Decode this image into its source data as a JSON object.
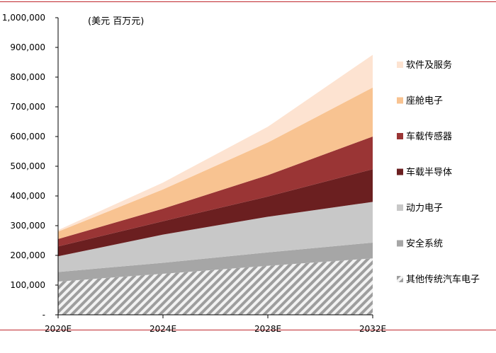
{
  "chart_data": {
    "type": "area",
    "stacked": true,
    "title": "",
    "unit_label": "(美元 百万元)",
    "categories": [
      "2020E",
      "2024E",
      "2028E",
      "2032E"
    ],
    "ylim": [
      0,
      1000000
    ],
    "yticks": [
      {
        "value": 0,
        "label": "-"
      },
      {
        "value": 100000,
        "label": "100,000"
      },
      {
        "value": 200000,
        "label": "200,000"
      },
      {
        "value": 300000,
        "label": "300,000"
      },
      {
        "value": 400000,
        "label": "400,000"
      },
      {
        "value": 500000,
        "label": "500,000"
      },
      {
        "value": 600000,
        "label": "600,000"
      },
      {
        "value": 700000,
        "label": "700,000"
      },
      {
        "value": 800000,
        "label": "800,000"
      },
      {
        "value": 900000,
        "label": "900,000"
      },
      {
        "value": 1000000,
        "label": "1,000,000"
      }
    ],
    "legend_position": "right",
    "series": [
      {
        "name": "其他传统汽车电子",
        "color": "#9e9e9e",
        "hatched": true,
        "values": [
          112000,
          138000,
          165000,
          190000
        ]
      },
      {
        "name": "安全系统",
        "color": "#a6a6a6",
        "values": [
          32000,
          37000,
          45000,
          53000
        ]
      },
      {
        "name": "动力电子",
        "color": "#c8c8c8",
        "values": [
          53000,
          95000,
          120000,
          137000
        ]
      },
      {
        "name": "车载半导体",
        "color": "#6b1f20",
        "values": [
          33000,
          45000,
          68000,
          110000
        ]
      },
      {
        "name": "车载传感器",
        "color": "#9a3535",
        "values": [
          25000,
          42000,
          72000,
          110000
        ]
      },
      {
        "name": "座舱电子",
        "color": "#f8c391",
        "values": [
          25000,
          65000,
          110000,
          165000
        ]
      },
      {
        "name": "软件及服务",
        "color": "#fde3d1",
        "values": [
          5000,
          23000,
          53000,
          110000
        ]
      }
    ]
  }
}
